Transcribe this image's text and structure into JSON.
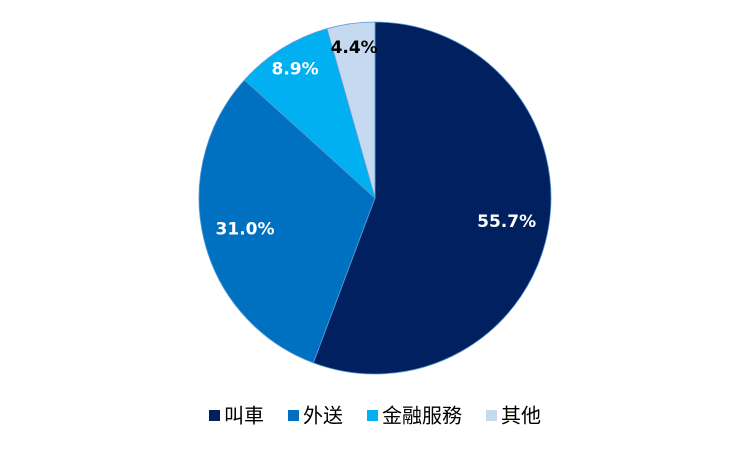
{
  "chart_data": {
    "type": "pie",
    "categories": [
      "叫車",
      "外送",
      "金融服務",
      "其他"
    ],
    "values": [
      55.7,
      31.0,
      8.9,
      4.4
    ],
    "value_labels": [
      "55.7%",
      "31.0%",
      "8.9%",
      "4.4%"
    ],
    "colors": [
      "#002060",
      "#0070c0",
      "#00b0f0",
      "#c5d9f1"
    ],
    "legend": "bottom"
  }
}
